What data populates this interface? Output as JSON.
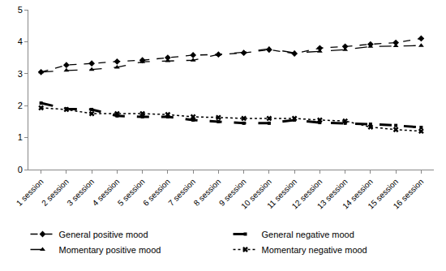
{
  "chart_data": {
    "type": "line",
    "categories": [
      "1 session",
      "2 session",
      "3 session",
      "4 session",
      "5 session",
      "6 session",
      "7 session",
      "8 session",
      "9 session",
      "10 session",
      "11 session",
      "12 session",
      "13 session",
      "14 session",
      "15 session",
      "16 session"
    ],
    "series": [
      {
        "name": "General positive mood",
        "color": "#000000",
        "marker": "diamond",
        "line_style": "dash",
        "values": [
          3.05,
          3.27,
          3.32,
          3.38,
          3.42,
          3.5,
          3.58,
          3.6,
          3.65,
          3.75,
          3.63,
          3.8,
          3.85,
          3.92,
          3.97,
          4.1
        ]
      },
      {
        "name": "General negative mood",
        "color": "#000000",
        "marker": "square",
        "line_style": "longdash",
        "values": [
          2.08,
          1.9,
          1.88,
          1.68,
          1.65,
          1.65,
          1.55,
          1.5,
          1.45,
          1.45,
          1.55,
          1.47,
          1.45,
          1.42,
          1.38,
          1.32
        ]
      },
      {
        "name": "Momentary positive mood",
        "color": "#000000",
        "marker": "triangle",
        "line_style": "longdash",
        "values": [
          3.05,
          3.1,
          3.13,
          3.2,
          3.37,
          3.4,
          3.42,
          3.6,
          3.67,
          3.78,
          3.65,
          3.7,
          3.75,
          3.85,
          3.87,
          3.88
        ]
      },
      {
        "name": "Momentary negative mood",
        "color": "#000000",
        "marker": "x",
        "line_style": "dot",
        "values": [
          1.93,
          1.88,
          1.75,
          1.75,
          1.75,
          1.72,
          1.65,
          1.63,
          1.6,
          1.6,
          1.6,
          1.55,
          1.52,
          1.33,
          1.25,
          1.2
        ]
      }
    ],
    "ylim": [
      0,
      5
    ],
    "yticks": [
      0,
      1,
      2,
      3,
      4,
      5
    ],
    "grid": false,
    "legend": "bottom"
  }
}
